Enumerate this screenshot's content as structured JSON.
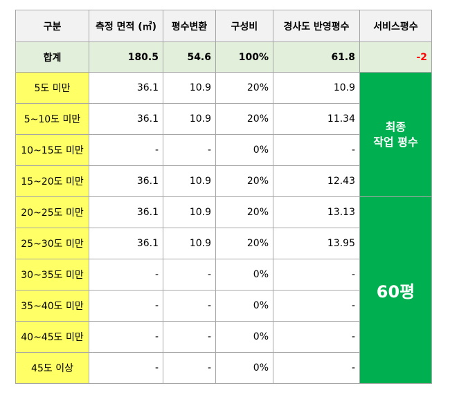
{
  "headers": [
    "구분",
    "측정 면적 (㎡)",
    "평수변환",
    "구성비",
    "경사도 반영평수",
    "서비스평수"
  ],
  "total": {
    "label": "합계",
    "area": "180.5",
    "pyeong": "54.6",
    "ratio": "100%",
    "slope": "61.8",
    "service": "-2"
  },
  "rows": [
    {
      "label": "5도 미만",
      "area": "36.1",
      "pyeong": "10.9",
      "ratio": "20%",
      "slope": "10.9"
    },
    {
      "label": "5~10도 미만",
      "area": "36.1",
      "pyeong": "10.9",
      "ratio": "20%",
      "slope": "11.34"
    },
    {
      "label": "10~15도 미만",
      "area": "-",
      "pyeong": "-",
      "ratio": "0%",
      "slope": "-"
    },
    {
      "label": "15~20도 미만",
      "area": "36.1",
      "pyeong": "10.9",
      "ratio": "20%",
      "slope": "12.43"
    },
    {
      "label": "20~25도 미만",
      "area": "36.1",
      "pyeong": "10.9",
      "ratio": "20%",
      "slope": "13.13"
    },
    {
      "label": "25~30도 미만",
      "area": "36.1",
      "pyeong": "10.9",
      "ratio": "20%",
      "slope": "13.95"
    },
    {
      "label": "30~35도 미만",
      "area": "-",
      "pyeong": "-",
      "ratio": "0%",
      "slope": "-"
    },
    {
      "label": "35~40도 미만",
      "area": "-",
      "pyeong": "-",
      "ratio": "0%",
      "slope": "-"
    },
    {
      "label": "40~45도 미만",
      "area": "-",
      "pyeong": "-",
      "ratio": "0%",
      "slope": "-"
    },
    {
      "label": "45도 이상",
      "area": "-",
      "pyeong": "-",
      "ratio": "0%",
      "slope": "-"
    }
  ],
  "final_box": {
    "line1": "최종",
    "line2": "작업 평수",
    "value": "60평"
  },
  "colors": {
    "header_bg": "#f2f2f2",
    "total_bg": "#e2efda",
    "label_bg": "#ffff66",
    "green": "#00b050",
    "red": "#ff0000"
  }
}
